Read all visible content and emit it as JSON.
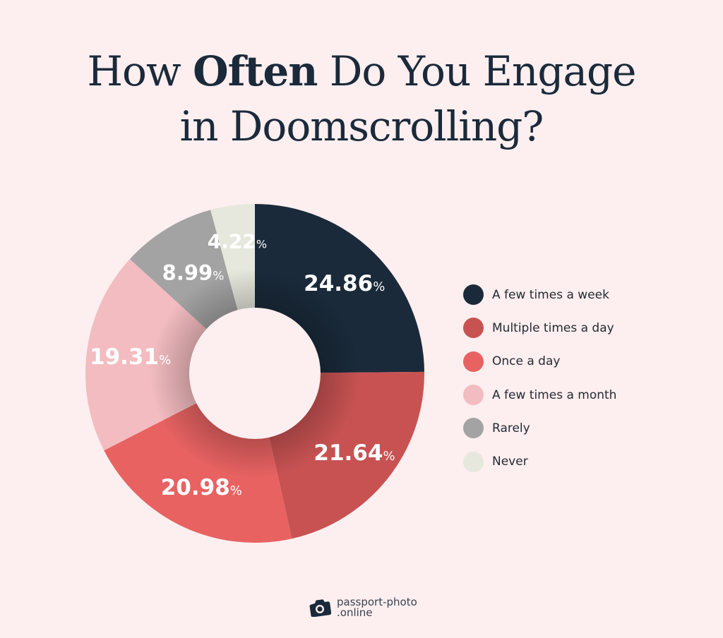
{
  "title": {
    "line1_pre": "How ",
    "line1_bold": "Often",
    "line1_post": " Do You Engage",
    "line2": "in Doomscrolling?"
  },
  "brand": {
    "icon": "camera-icon",
    "line1": "passport-photo",
    "line2": ".online"
  },
  "colors": {
    "background": "#fdeeef",
    "title": "#1a2a3a"
  },
  "chart_data": {
    "type": "pie",
    "variant": "donut",
    "title": "How Often Do You Engage in Doomscrolling?",
    "unit": "%",
    "start_angle": "12 o'clock, clockwise",
    "legend_position": "right",
    "categories": [
      "A few times a week",
      "Multiple times a day",
      "Once a day",
      "A few times a month",
      "Rarely",
      "Never"
    ],
    "values": [
      24.86,
      21.64,
      20.98,
      19.31,
      8.99,
      4.22
    ],
    "labels": [
      "24.86",
      "21.64",
      "20.98",
      "19.31",
      "8.99",
      "4.22"
    ],
    "colors": [
      "#1a2a3a",
      "#c85252",
      "#e86262",
      "#f3bcc0",
      "#a3a3a3",
      "#e6e8dd"
    ]
  },
  "legend": {
    "items": [
      {
        "label": "A few times a week",
        "color": "#1a2a3a"
      },
      {
        "label": "Multiple times a day",
        "color": "#c85252"
      },
      {
        "label": "Once a day",
        "color": "#e86262"
      },
      {
        "label": "A few times a month",
        "color": "#f3bcc0"
      },
      {
        "label": "Rarely",
        "color": "#a3a3a3"
      },
      {
        "label": "Never",
        "color": "#e6e8dd"
      }
    ]
  }
}
